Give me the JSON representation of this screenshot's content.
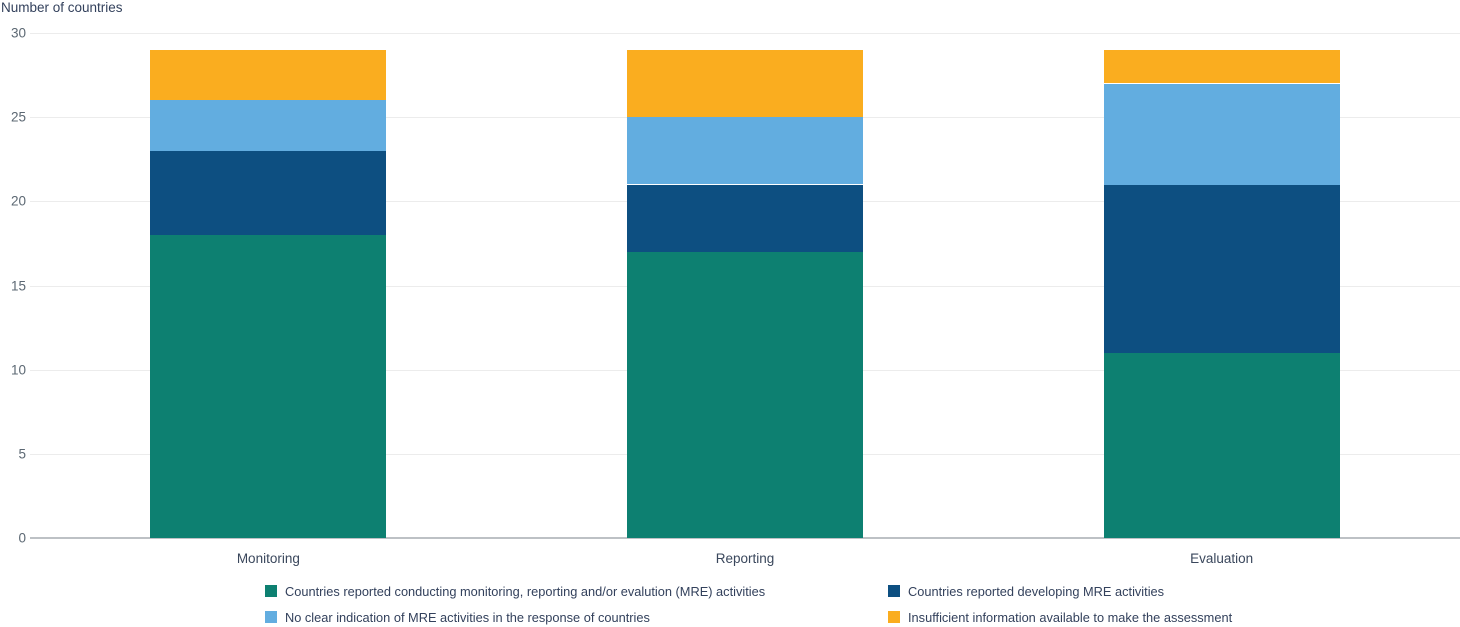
{
  "chart_data": {
    "type": "bar",
    "stacked": true,
    "title": "Number of countries",
    "categories": [
      "Monitoring",
      "Reporting",
      "Evaluation"
    ],
    "series": [
      {
        "name": "Countries reported conducting monitoring, reporting and/or evalution (MRE) activities",
        "color": "#0D8071",
        "values": [
          18,
          17,
          11
        ]
      },
      {
        "name": "Countries reported developing MRE activities",
        "color": "#0D4F81",
        "values": [
          5,
          4,
          10
        ]
      },
      {
        "name": "No clear indication of MRE activities in the response of countries",
        "color": "#62ADE0",
        "values": [
          3,
          4,
          6
        ]
      },
      {
        "name": "Insufficient information available to make the assessment",
        "color": "#FAAD1F",
        "values": [
          3,
          4,
          2
        ]
      }
    ],
    "totals": [
      29,
      29,
      29
    ],
    "ylim": [
      0,
      30
    ],
    "ytick_step": 5,
    "yticks": [
      0,
      5,
      10,
      15,
      20,
      25,
      30
    ],
    "grid": true,
    "legend_position": "bottom",
    "legend_columns": 2
  },
  "colors": {
    "title_text": "#33415C",
    "axis_tick_text": "#5C6873",
    "category_text": "#3A475C",
    "legend_text": "#33415C",
    "gridline": "#ECECEC",
    "axis_line": "#BDC1C5",
    "background": "#FFFFFF"
  }
}
